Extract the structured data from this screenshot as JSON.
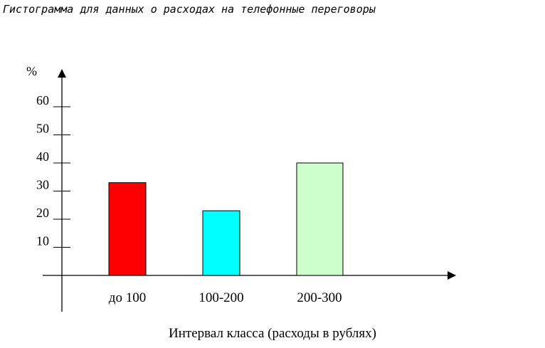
{
  "chart_data": {
    "type": "bar",
    "title": "Гистограмма для данных о расходах на телефонные переговоры",
    "ylabel": "%",
    "xlabel": "Интервал класса (расходы в рублях)",
    "categories": [
      "до 100",
      "100-200",
      "200-300"
    ],
    "values": [
      33,
      23,
      40
    ],
    "colors": [
      "#ff0000",
      "#00ffff",
      "#ccffcc"
    ],
    "ylim": [
      0,
      70
    ],
    "yticks": [
      10,
      20,
      30,
      40,
      50,
      60
    ],
    "grid": false,
    "legend": "none"
  }
}
